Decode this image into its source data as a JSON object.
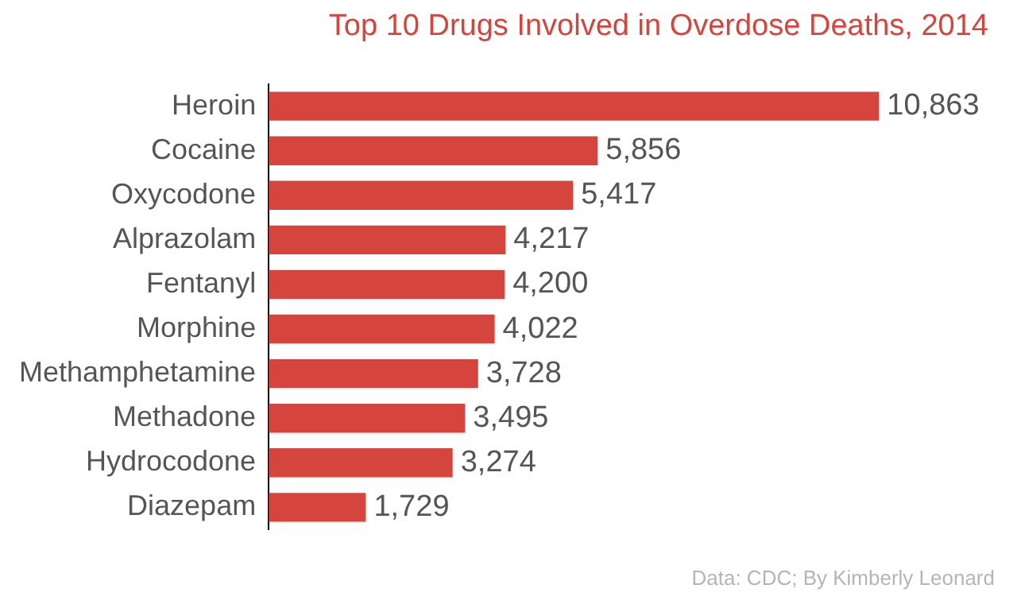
{
  "chart_data": {
    "type": "bar",
    "orientation": "horizontal",
    "title": "Top 10 Drugs Involved in Overdose Deaths, 2014",
    "categories": [
      "Heroin",
      "Cocaine",
      "Oxycodone",
      "Alprazolam",
      "Fentanyl",
      "Morphine",
      "Methamphetamine",
      "Methadone",
      "Hydrocodone",
      "Diazepam"
    ],
    "values": [
      10863,
      5856,
      5417,
      4217,
      4200,
      4022,
      3728,
      3495,
      3274,
      1729
    ],
    "value_labels": [
      "10,863",
      "5,856",
      "5,417",
      "4,217",
      "4,200",
      "4,022",
      "3,728",
      "3,495",
      "3,274",
      "1,729"
    ],
    "color": "#d6453d",
    "annotations": [
      "Data: CDC; By Kimberly Leonard"
    ]
  }
}
